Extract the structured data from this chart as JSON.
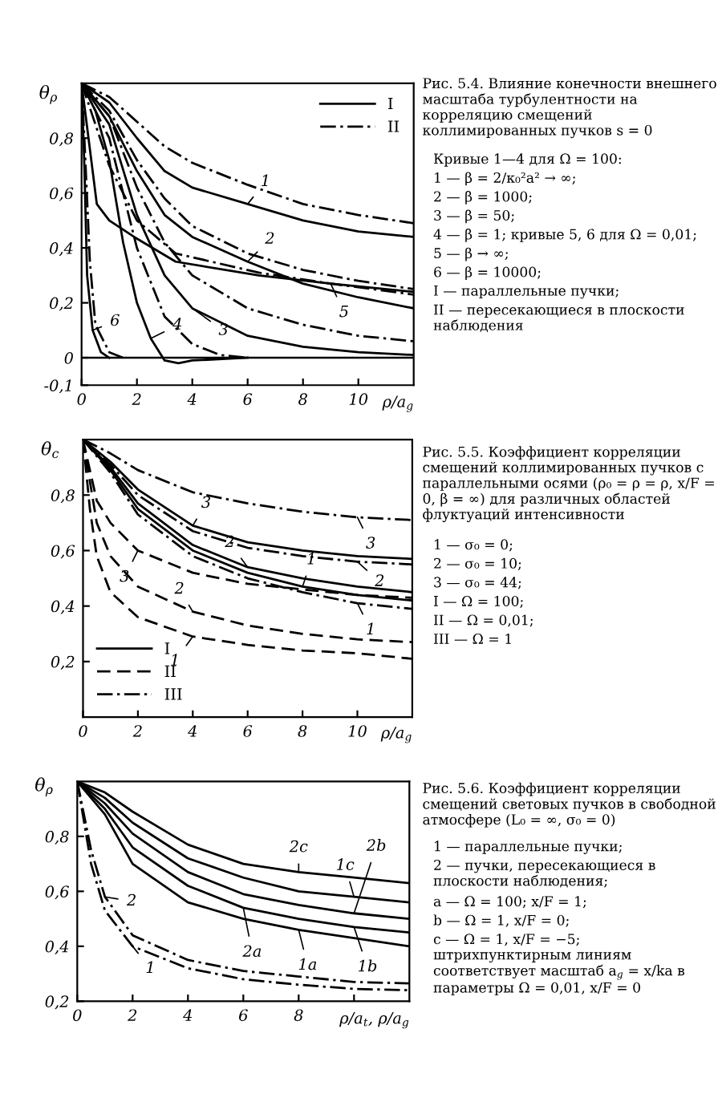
{
  "chart_data": [
    {
      "type": "line",
      "ylabel": "θ$_{ρ}$",
      "xlabel": "ρ/a$_{g}$",
      "xlim": [
        0,
        12
      ],
      "ylim": [
        -0.1,
        1
      ],
      "xticks": [
        0,
        2,
        4,
        6,
        8,
        10
      ],
      "yticks": [
        {
          "value": -0.1,
          "label": "-0,1"
        },
        {
          "value": 0,
          "label": "0"
        },
        {
          "value": 0.2,
          "label": "0,2"
        },
        {
          "value": 0.4,
          "label": "0,4"
        },
        {
          "value": 0.6,
          "label": "0,6"
        },
        {
          "value": 0.8,
          "label": "0,8"
        }
      ],
      "grid": false,
      "legend": "top right",
      "ref_lines": [
        {
          "axis": "y",
          "value": 0,
          "color": "#000000",
          "line_style": "solid"
        }
      ],
      "series": [
        {
          "name": "I",
          "color": "#000000",
          "line_style": "solid",
          "x": [
            0,
            1,
            2,
            3,
            4,
            6,
            8,
            10,
            12
          ],
          "values": [
            1,
            0.93,
            0.8,
            0.68,
            0.62,
            0.56,
            0.5,
            0.46,
            0.44
          ]
        },
        {
          "name": "II",
          "color": "#000000",
          "line_style": "dashdot",
          "x": [
            0,
            1,
            2,
            3,
            4,
            6,
            8,
            10,
            12
          ],
          "values": [
            1,
            0.95,
            0.86,
            0.77,
            0.71,
            0.63,
            0.56,
            0.52,
            0.49
          ]
        },
        {
          "color": "#000000",
          "line_style": "solid",
          "x": [
            0,
            1,
            2,
            3,
            4,
            6,
            8,
            10,
            12
          ],
          "values": [
            1,
            0.88,
            0.68,
            0.52,
            0.44,
            0.35,
            0.27,
            0.22,
            0.18
          ]
        },
        {
          "color": "#000000",
          "line_style": "dashdot",
          "x": [
            0,
            1,
            2,
            3,
            4,
            6,
            8,
            10,
            12
          ],
          "values": [
            1,
            0.9,
            0.72,
            0.58,
            0.48,
            0.38,
            0.32,
            0.28,
            0.25
          ]
        },
        {
          "color": "#000000",
          "line_style": "solid",
          "x": [
            0,
            1,
            2,
            3,
            4,
            6,
            8,
            10,
            12
          ],
          "values": [
            1,
            0.85,
            0.52,
            0.3,
            0.18,
            0.08,
            0.04,
            0.02,
            0.01
          ]
        },
        {
          "color": "#000000",
          "line_style": "dashdot",
          "x": [
            0,
            1,
            2,
            3,
            4,
            6,
            8,
            10,
            12
          ],
          "values": [
            1,
            0.88,
            0.62,
            0.42,
            0.3,
            0.18,
            0.12,
            0.08,
            0.06
          ]
        },
        {
          "color": "#000000",
          "line_style": "solid",
          "x": [
            0,
            0.5,
            1,
            1.5,
            2,
            2.5,
            3,
            3.5,
            4,
            6
          ],
          "values": [
            1,
            0.9,
            0.72,
            0.42,
            0.2,
            0.07,
            -0.01,
            -0.02,
            -0.01,
            0
          ]
        },
        {
          "color": "#000000",
          "line_style": "dashdot",
          "x": [
            0,
            1,
            2,
            3,
            4,
            5,
            6
          ],
          "values": [
            1,
            0.8,
            0.4,
            0.15,
            0.05,
            0.01,
            0
          ]
        },
        {
          "color": "#000000",
          "line_style": "solid",
          "x": [
            0,
            0.25,
            0.55,
            1,
            1.9,
            3.4,
            6.4,
            9,
            12
          ],
          "values": [
            1,
            0.8,
            0.56,
            0.5,
            0.44,
            0.35,
            0.3,
            0.27,
            0.24
          ]
        },
        {
          "color": "#000000",
          "line_style": "dashdot",
          "x": [
            0,
            0.5,
            1,
            2,
            3.4,
            6.4,
            9,
            12
          ],
          "values": [
            1,
            0.85,
            0.7,
            0.5,
            0.38,
            0.31,
            0.27,
            0.23
          ]
        },
        {
          "color": "#000000",
          "line_style": "solid",
          "x": [
            0,
            0.1,
            0.2,
            0.4,
            0.7,
            1
          ],
          "values": [
            1,
            0.7,
            0.3,
            0.1,
            0.02,
            0
          ]
        },
        {
          "color": "#000000",
          "line_style": "dashdot",
          "x": [
            0,
            0.1,
            0.3,
            0.5,
            1,
            1.5
          ],
          "values": [
            1,
            0.8,
            0.35,
            0.12,
            0.02,
            0
          ]
        }
      ],
      "annotations": [
        {
          "text": "1",
          "x": 6,
          "y": 0.56
        },
        {
          "text": "2",
          "x": 6,
          "y": 0.35
        },
        {
          "text": "3",
          "x": 4,
          "y": 0.18
        },
        {
          "text": "4",
          "x": 2.5,
          "y": 0.07
        },
        {
          "text": "5",
          "x": 9,
          "y": 0.27
        },
        {
          "text": "6",
          "x": 0.4,
          "y": 0.1
        },
        "Рис. 5.4. Влияние конечности внешнего масштаба турбулентности на корреляцию смещений коллимированных пучков s = 0",
        "Кривые 1—4 для Ω = 100:",
        "1 — β = 2/κ₀²a² → ∞;",
        "2 — β = 1000;",
        "3 — β = 50;",
        "4 — β = 1; кривые 5, 6 для Ω = 0,01;",
        "5 — β → ∞;",
        "6 — β = 10000;",
        "I — параллельные пучки;",
        "II — пересекающиеся в плоскости наблюдения"
      ]
    },
    {
      "type": "line",
      "ylabel": "θ$_{c}$",
      "xlabel": "ρ/a$_{g}$",
      "xlim": [
        0,
        12
      ],
      "ylim": [
        0,
        1
      ],
      "xticks": [
        0,
        2,
        4,
        6,
        8,
        10
      ],
      "yticks": [
        {
          "value": 0.2,
          "label": "0,2"
        },
        {
          "value": 0.4,
          "label": "0,4"
        },
        {
          "value": 0.6,
          "label": "0,6"
        },
        {
          "value": 0.8,
          "label": "0,8"
        }
      ],
      "grid": false,
      "legend": "bottom left",
      "series": [
        {
          "name": "I",
          "color": "#000000",
          "line_style": "solid",
          "x": [
            0,
            1,
            2,
            4,
            6,
            8,
            10,
            12
          ],
          "values": [
            1,
            0.92,
            0.82,
            0.69,
            0.63,
            0.6,
            0.58,
            0.57
          ]
        },
        {
          "name": "II",
          "color": "#000000",
          "line_style": "dashed",
          "x": [
            0,
            0.5,
            1,
            2,
            4,
            6,
            8,
            10,
            12
          ],
          "values": [
            1,
            0.78,
            0.7,
            0.6,
            0.52,
            0.48,
            0.46,
            0.44,
            0.43
          ]
        },
        {
          "name": "III",
          "color": "#000000",
          "line_style": "dashdot",
          "x": [
            0,
            1,
            2,
            4,
            6,
            8,
            10,
            12
          ],
          "values": [
            1,
            0.95,
            0.89,
            0.81,
            0.77,
            0.74,
            0.72,
            0.71
          ]
        },
        {
          "color": "#000000",
          "line_style": "dashdot",
          "x": [
            0,
            1,
            2,
            4,
            6,
            8,
            10,
            12
          ],
          "values": [
            1,
            0.91,
            0.8,
            0.67,
            0.61,
            0.58,
            0.56,
            0.55
          ]
        },
        {
          "color": "#000000",
          "line_style": "solid",
          "x": [
            0,
            1,
            2,
            4,
            6,
            8,
            10,
            12
          ],
          "values": [
            1,
            0.9,
            0.77,
            0.62,
            0.54,
            0.5,
            0.47,
            0.45
          ]
        },
        {
          "color": "#000000",
          "line_style": "solid",
          "x": [
            0,
            1,
            2,
            4,
            6,
            8,
            10,
            12
          ],
          "values": [
            1,
            0.89,
            0.75,
            0.6,
            0.52,
            0.47,
            0.44,
            0.42
          ]
        },
        {
          "color": "#000000",
          "line_style": "dashdot",
          "x": [
            0,
            1,
            2,
            4,
            6,
            8,
            10,
            12
          ],
          "values": [
            1,
            0.88,
            0.73,
            0.58,
            0.5,
            0.45,
            0.41,
            0.39
          ]
        },
        {
          "color": "#000000",
          "line_style": "dashed",
          "x": [
            0,
            0.25,
            0.5,
            1,
            2,
            4,
            6,
            8,
            10,
            12
          ],
          "values": [
            1,
            0.85,
            0.7,
            0.58,
            0.47,
            0.38,
            0.33,
            0.3,
            0.28,
            0.27
          ]
        },
        {
          "color": "#000000",
          "line_style": "dashed",
          "x": [
            0,
            0.25,
            0.5,
            1,
            2,
            4,
            6,
            8,
            10,
            12
          ],
          "values": [
            1,
            0.75,
            0.58,
            0.45,
            0.36,
            0.29,
            0.26,
            0.24,
            0.23,
            0.21
          ]
        }
      ],
      "annotations": [
        {
          "text": "3",
          "x": 4,
          "y": 0.69
        },
        {
          "text": "3",
          "x": 10,
          "y": 0.72
        },
        {
          "text": "2",
          "x": 6,
          "y": 0.54
        },
        {
          "text": "1",
          "x": 8,
          "y": 0.47
        },
        {
          "text": "3",
          "x": 2,
          "y": 0.6
        },
        {
          "text": "2",
          "x": 10,
          "y": 0.56
        },
        {
          "text": "2",
          "x": 4,
          "y": 0.38
        },
        {
          "text": "1",
          "x": 10,
          "y": 0.41
        },
        {
          "text": "1",
          "x": 4,
          "y": 0.29
        },
        "Рис. 5.5. Коэффициент корреляции смещений коллимированных пучков с параллельными осями (ρ₀ = ρ = ρ, x/F = 0, β = ∞) для различных областей флуктуаций интенсивности",
        "1 — σ₀ = 0;",
        "2 — σ₀ = 10;",
        "3 — σ₀ = 44;",
        "I — Ω = 100;",
        "II — Ω = 0,01;",
        "III — Ω = 1"
      ]
    },
    {
      "type": "line",
      "ylabel": "θ$_{ρ}$",
      "xlabel": "ρ/a$_{t}$, ρ/a$_{g}$",
      "xlim": [
        0,
        12
      ],
      "ylim": [
        0.2,
        1
      ],
      "xticks": [
        0,
        2,
        4,
        6,
        8,
        {
          "value": 10,
          "label": null
        }
      ],
      "yticks": [
        {
          "value": 0.2,
          "label": "0,2"
        },
        {
          "value": 0.4,
          "label": "0,4"
        },
        {
          "value": 0.6,
          "label": "0,6"
        },
        {
          "value": 0.8,
          "label": "0,8"
        }
      ],
      "grid": false,
      "series": [
        {
          "color": "#000000",
          "line_style": "solid",
          "x": [
            0,
            1,
            2,
            4,
            6,
            8,
            10,
            12
          ],
          "values": [
            1,
            0.96,
            0.89,
            0.77,
            0.7,
            0.67,
            0.65,
            0.63
          ]
        },
        {
          "color": "#000000",
          "line_style": "solid",
          "x": [
            0,
            1,
            2,
            4,
            6,
            8,
            10,
            12
          ],
          "values": [
            1,
            0.94,
            0.85,
            0.72,
            0.65,
            0.6,
            0.58,
            0.56
          ]
        },
        {
          "color": "#000000",
          "line_style": "solid",
          "x": [
            0,
            1,
            2,
            4,
            6,
            8,
            10,
            12
          ],
          "values": [
            1,
            0.92,
            0.81,
            0.67,
            0.59,
            0.55,
            0.52,
            0.5
          ]
        },
        {
          "color": "#000000",
          "line_style": "solid",
          "x": [
            0,
            1,
            2,
            4,
            6,
            8,
            10,
            12
          ],
          "values": [
            1,
            0.9,
            0.76,
            0.62,
            0.54,
            0.5,
            0.47,
            0.45
          ]
        },
        {
          "color": "#000000",
          "line_style": "solid",
          "x": [
            0,
            1,
            2,
            4,
            6,
            8,
            10,
            12
          ],
          "values": [
            1,
            0.88,
            0.7,
            0.56,
            0.5,
            0.46,
            0.43,
            0.4
          ]
        },
        {
          "color": "#000000",
          "line_style": "dashdot",
          "x": [
            0,
            0.2,
            0.5,
            1,
            2,
            4,
            6,
            8,
            10,
            12
          ],
          "values": [
            1,
            0.9,
            0.75,
            0.58,
            0.44,
            0.35,
            0.31,
            0.29,
            0.27,
            0.265
          ]
        },
        {
          "color": "#000000",
          "line_style": "dashdot",
          "x": [
            0,
            0.2,
            0.5,
            1,
            2,
            4,
            6,
            8,
            10,
            12
          ],
          "values": [
            1,
            0.88,
            0.7,
            0.53,
            0.4,
            0.32,
            0.28,
            0.26,
            0.245,
            0.24
          ]
        }
      ],
      "annotations": [
        {
          "text": "2c",
          "x": 8,
          "y": 0.67
        },
        {
          "text": "1c",
          "x": 10,
          "y": 0.58
        },
        {
          "text": "2b",
          "x": 10,
          "y": 0.52
        },
        {
          "text": "2a",
          "x": 6,
          "y": 0.54
        },
        {
          "text": "1a",
          "x": 8,
          "y": 0.46
        },
        {
          "text": "1b",
          "x": 10,
          "y": 0.47
        },
        {
          "text": "2",
          "x": 1,
          "y": 0.58
        },
        {
          "text": "1",
          "x": 2,
          "y": 0.4
        },
        "Рис. 5.6. Коэффициент корреляции смещений световых пучков в свободной атмосфере (L₀ = ∞, σ₀ = 0)",
        "1 — параллельные пучки;",
        "2 — пучки, пересекающиеся в плоскости наблюдения;",
        "a — Ω = 100; x/F = 1;",
        "b — Ω = 1, x/F = 0;",
        "c — Ω = 1, x/F = −5; штрихпунктирным линиям соответствует масштаб a$_{g}$ = x/ka в параметры Ω = 0,01, x/F = 0"
      ]
    }
  ]
}
